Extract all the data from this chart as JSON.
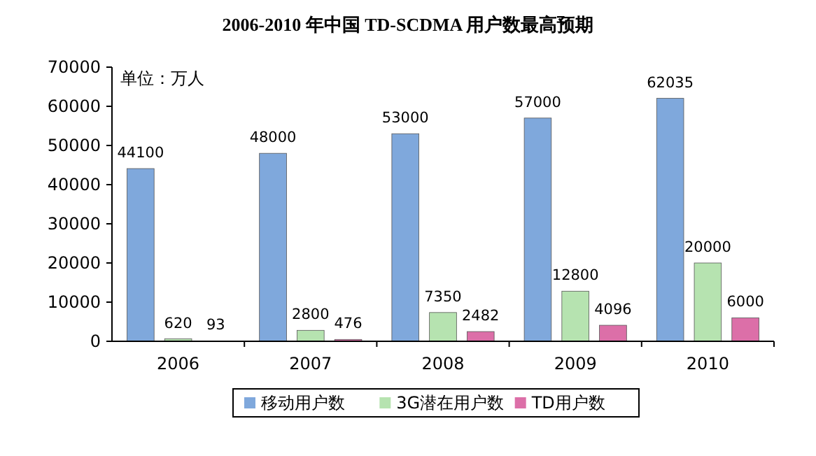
{
  "chart_data": {
    "type": "bar",
    "title": "2006-2010 年中国 TD-SCDMA 用户数最高预期",
    "categories": [
      "2006",
      "2007",
      "2008",
      "2009",
      "2010"
    ],
    "series": [
      {
        "name": "移动用户数",
        "color": "#7fa8dc",
        "values": [
          44100,
          48000,
          53000,
          57000,
          62035
        ]
      },
      {
        "name": "3G潜在用户数",
        "color": "#b6e3b0",
        "values": [
          620,
          2800,
          7350,
          12800,
          20000
        ]
      },
      {
        "name": "TD用户数",
        "color": "#dc6fa8",
        "values": [
          93,
          476,
          2482,
          4096,
          6000
        ]
      }
    ],
    "ylim": [
      0,
      70000
    ],
    "yticks": [
      0,
      10000,
      20000,
      30000,
      40000,
      50000,
      60000,
      70000
    ],
    "annotations": [
      "单位：万人"
    ],
    "data_labels": true,
    "grid": false,
    "legend": "bottom"
  }
}
